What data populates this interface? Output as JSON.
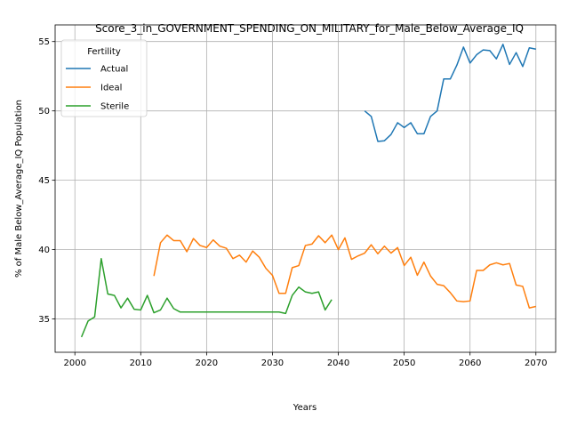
{
  "chart_data": {
    "type": "line",
    "title": "Score_3_in_GOVERNMENT_SPENDING_ON_MILITARY_for_Male_Below_Average_IQ",
    "xlabel": "Years",
    "ylabel": "% of Male Below_Average_IQ Population",
    "xlim": [
      1997,
      2073
    ],
    "ylim": [
      32.6,
      56.2
    ],
    "xticks": [
      2000,
      2010,
      2020,
      2030,
      2040,
      2050,
      2060,
      2070
    ],
    "yticks": [
      35,
      40,
      45,
      50,
      55
    ],
    "grid": true,
    "legend": {
      "title": "Fertility",
      "placement": "top-left"
    },
    "series": [
      {
        "name": "Actual",
        "color": "#1f77b4",
        "x": [
          2044,
          2045,
          2046,
          2047,
          2048,
          2049,
          2050,
          2051,
          2052,
          2053,
          2054,
          2055,
          2056,
          2057,
          2058,
          2059,
          2060,
          2061,
          2062,
          2063,
          2064,
          2065,
          2066,
          2067,
          2068,
          2069,
          2070
        ],
        "y": [
          50.0,
          49.6,
          47.8,
          47.85,
          48.3,
          49.15,
          48.8,
          49.15,
          48.35,
          48.35,
          49.6,
          50.0,
          52.3,
          52.3,
          53.3,
          54.6,
          53.45,
          54.05,
          54.4,
          54.35,
          53.75,
          54.8,
          53.35,
          54.2,
          53.2,
          54.55,
          54.45
        ]
      },
      {
        "name": "Ideal",
        "color": "#ff7f0e",
        "x": [
          2012,
          2013,
          2014,
          2015,
          2016,
          2017,
          2018,
          2019,
          2020,
          2021,
          2022,
          2023,
          2024,
          2025,
          2026,
          2027,
          2028,
          2029,
          2030,
          2031,
          2032,
          2033,
          2034,
          2035,
          2036,
          2037,
          2038,
          2039,
          2040,
          2041,
          2042,
          2043,
          2044,
          2045,
          2046,
          2047,
          2048,
          2049,
          2050,
          2051,
          2052,
          2053,
          2054,
          2055,
          2056,
          2057,
          2058,
          2059,
          2060,
          2061,
          2062,
          2063,
          2064,
          2065,
          2066,
          2067,
          2068,
          2069,
          2070
        ],
        "y": [
          38.1,
          40.5,
          41.05,
          40.65,
          40.65,
          39.85,
          40.8,
          40.3,
          40.15,
          40.7,
          40.25,
          40.1,
          39.35,
          39.6,
          39.1,
          39.9,
          39.45,
          38.65,
          38.15,
          36.85,
          36.85,
          38.7,
          38.85,
          40.3,
          40.4,
          41.0,
          40.5,
          41.05,
          40.0,
          40.85,
          39.3,
          39.55,
          39.75,
          40.35,
          39.7,
          40.25,
          39.75,
          40.15,
          38.85,
          39.45,
          38.15,
          39.1,
          38.1,
          37.5,
          37.4,
          36.9,
          36.3,
          36.25,
          36.3,
          38.5,
          38.5,
          38.9,
          39.05,
          38.9,
          39.0,
          37.45,
          37.35,
          35.8,
          35.9
        ]
      },
      {
        "name": "Sterile",
        "color": "#2ca02c",
        "x": [
          2001,
          2002,
          2003,
          2004,
          2005,
          2006,
          2007,
          2008,
          2009,
          2010,
          2011,
          2012,
          2013,
          2014,
          2015,
          2016,
          2017,
          2018,
          2019,
          2020,
          2021,
          2022,
          2023,
          2024,
          2025,
          2026,
          2027,
          2028,
          2029,
          2030,
          2031,
          2032,
          2033,
          2034,
          2035,
          2036,
          2037,
          2038,
          2039
        ],
        "y": [
          33.7,
          34.85,
          35.15,
          39.35,
          36.8,
          36.7,
          35.8,
          36.5,
          35.7,
          35.65,
          36.7,
          35.45,
          35.65,
          36.5,
          35.75,
          35.5,
          35.5,
          35.5,
          35.5,
          35.5,
          35.5,
          35.5,
          35.5,
          35.5,
          35.5,
          35.5,
          35.5,
          35.5,
          35.5,
          35.5,
          35.5,
          35.4,
          36.7,
          37.3,
          36.95,
          36.85,
          36.95,
          35.65,
          36.4
        ]
      }
    ]
  }
}
